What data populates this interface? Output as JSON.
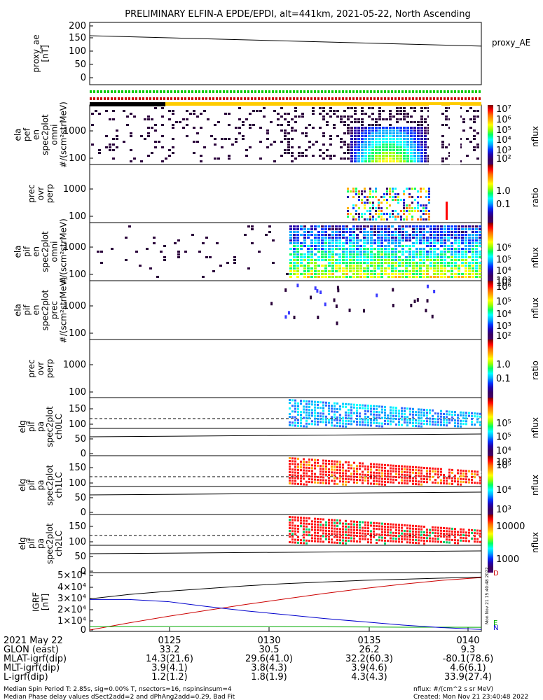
{
  "title": "PRELIMINARY ELFIN-A EPDE/EPDI, alt=441km, 2021-05-22, North Ascending",
  "panels": [
    {
      "key": "p1",
      "ylabel": [
        "proxy_ae",
        "[nT]"
      ],
      "yticks": [
        "200",
        "150",
        "100",
        "50",
        "0"
      ],
      "right_label": "proxy_AE"
    },
    {
      "key": "p2",
      "ylabel": [
        "ela",
        "pef",
        "en",
        "spec2plot",
        "omni",
        "#/(scm²strMeV)"
      ],
      "yticks": [
        "1000",
        "100"
      ],
      "cbar_ticks": [
        "10⁷",
        "10⁶",
        "10⁵",
        "10⁴",
        "10³",
        "10²"
      ],
      "cbar_label": "nflux"
    },
    {
      "key": "p3",
      "ylabel": [
        "prec",
        "ovr",
        "perp"
      ],
      "yticks": [
        "1000",
        "100"
      ],
      "cbar_ticks": [
        "1.0",
        "0.1"
      ],
      "cbar_label": "ratio"
    },
    {
      "key": "p4",
      "ylabel": [
        "ela",
        "pif",
        "en",
        "spec2plot",
        "omni",
        "#/(scm²strMeV)"
      ],
      "yticks": [
        "1000",
        "100"
      ],
      "cbar_ticks": [
        "10⁶",
        "10⁵",
        "10⁴",
        "10³"
      ],
      "cbar_label": "nflux"
    },
    {
      "key": "p5",
      "ylabel": [
        "ela",
        "pif",
        "en",
        "spec2plot",
        "prec",
        "#/(scm²strMeV)"
      ],
      "yticks": [
        "1000",
        "100"
      ],
      "cbar_ticks": [
        "10²",
        "10⁶",
        "10⁵",
        "10⁴",
        "10³",
        "10²"
      ],
      "cbar_label": "nflux"
    },
    {
      "key": "p6",
      "ylabel": [
        "prec",
        "ovr",
        "perp"
      ],
      "yticks": [
        "1000",
        "100"
      ],
      "cbar_ticks": [
        "1.0",
        "0.1"
      ],
      "cbar_label": "ratio"
    },
    {
      "key": "p7",
      "ylabel": [
        "elg",
        "pif",
        "pa",
        "spec2plot",
        "ch0LC"
      ],
      "yticks": [
        "150",
        "100",
        "50",
        "0"
      ],
      "cbar_ticks": [
        "10⁵",
        "10⁵",
        "10⁴",
        "10³"
      ],
      "cbar_label": "nflux"
    },
    {
      "key": "p8",
      "ylabel": [
        "elg",
        "pif",
        "pa",
        "spec2plot",
        "ch1LC"
      ],
      "yticks": [
        "150",
        "100",
        "50",
        "0"
      ],
      "cbar_ticks": [
        "10⁵",
        "10⁴",
        "10³"
      ],
      "cbar_label": "nflux"
    },
    {
      "key": "p9",
      "ylabel": [
        "elg",
        "pif",
        "pa",
        "spec2plot",
        "ch2LC"
      ],
      "yticks": [
        "150",
        "100",
        "50",
        "0"
      ],
      "cbar_ticks": [
        "10000",
        "1000"
      ],
      "cbar_label": "nflux"
    },
    {
      "key": "p10",
      "ylabel": [
        "IGRF",
        "[nT]"
      ],
      "yticks": [
        "5×10⁴",
        "4×10⁴",
        "3×10⁴",
        "2×10⁴",
        "1×10⁴",
        "0"
      ],
      "right_letters": [
        "D",
        "E",
        "N"
      ]
    }
  ],
  "chart_data": {
    "type": "line",
    "title": "PRELIMINARY ELFIN-A EPDE/EPDI, alt=441km, 2021-05-22, North Ascending",
    "x_ticks": [
      "0125",
      "0130",
      "0135",
      "0140"
    ],
    "proxy_ae": {
      "ylim": [
        0,
        200
      ],
      "x": [
        0,
        1
      ],
      "y": [
        162,
        122
      ],
      "label": "proxy_AE"
    },
    "igrf": {
      "ylim": [
        0,
        50000
      ],
      "series": [
        {
          "name": "D",
          "color": "#cc0000",
          "x": [
            0,
            0.1,
            0.2,
            0.3,
            0.4,
            0.5,
            0.6,
            0.7,
            0.8,
            0.9,
            1.0
          ],
          "y": [
            0,
            6500,
            12500,
            18000,
            23500,
            28500,
            33500,
            38000,
            42000,
            45500,
            48000
          ]
        },
        {
          "name": "E",
          "color": "#00aa00",
          "x": [
            0,
            0.2,
            0.4,
            0.6,
            0.8,
            1.0
          ],
          "y": [
            3000,
            3300,
            3100,
            2900,
            2600,
            2500
          ]
        },
        {
          "name": "N",
          "color": "#0000cc",
          "x": [
            0,
            0.1,
            0.2,
            0.3,
            0.4,
            0.5,
            0.6,
            0.7,
            0.8,
            0.9,
            1.0
          ],
          "y": [
            28000,
            28000,
            26000,
            21500,
            17500,
            14000,
            10500,
            7500,
            4500,
            2200,
            500
          ]
        },
        {
          "name": "total",
          "color": "#000000",
          "x": [
            0,
            0.1,
            0.2,
            0.3,
            0.4,
            0.5,
            0.6,
            0.7,
            0.8,
            0.9,
            1.0
          ],
          "y": [
            28500,
            32500,
            35500,
            38000,
            40500,
            42500,
            44000,
            45500,
            46500,
            47500,
            48500
          ]
        }
      ]
    }
  },
  "table": {
    "rows": [
      {
        "label": "2021 May 22",
        "values": [
          "0125",
          "0130",
          "0135",
          "0140"
        ]
      },
      {
        "label": "GLON (east)",
        "values": [
          "33.2",
          "30.5",
          "26.2",
          "9.3"
        ]
      },
      {
        "label": "MLAT-igrf(dip)",
        "values": [
          "14.3(21.6)",
          "29.6(41.0)",
          "32.2(60.3)",
          "-80.1(78.6)"
        ]
      },
      {
        "label": "MLT-igrf(dip)",
        "values": [
          "3.9(4.1)",
          "3.8(4.3)",
          "3.9(4.6)",
          "4.6(6.1)"
        ]
      },
      {
        "label": "L-igrf(dip)",
        "values": [
          "1.2(1.2)",
          "1.8(1.9)",
          "4.3(4.3)",
          "33.9(27.4)"
        ]
      }
    ]
  },
  "footer": {
    "left1": "Median Spin Period T: 2.85s, sig=0.00% T, nsectors=16, nspinsinsum=4",
    "left2": "Median Phase delay values dSect2add=2 and dPhAng2add=0.29, Bad Fit",
    "right1": "nflux: #/(cm^2 s sr MeV)",
    "right2": "Created: Mon Nov 21 23:40:48 2022"
  },
  "vertical_stamp": "Mon Nov 21 15:40:48 2022"
}
